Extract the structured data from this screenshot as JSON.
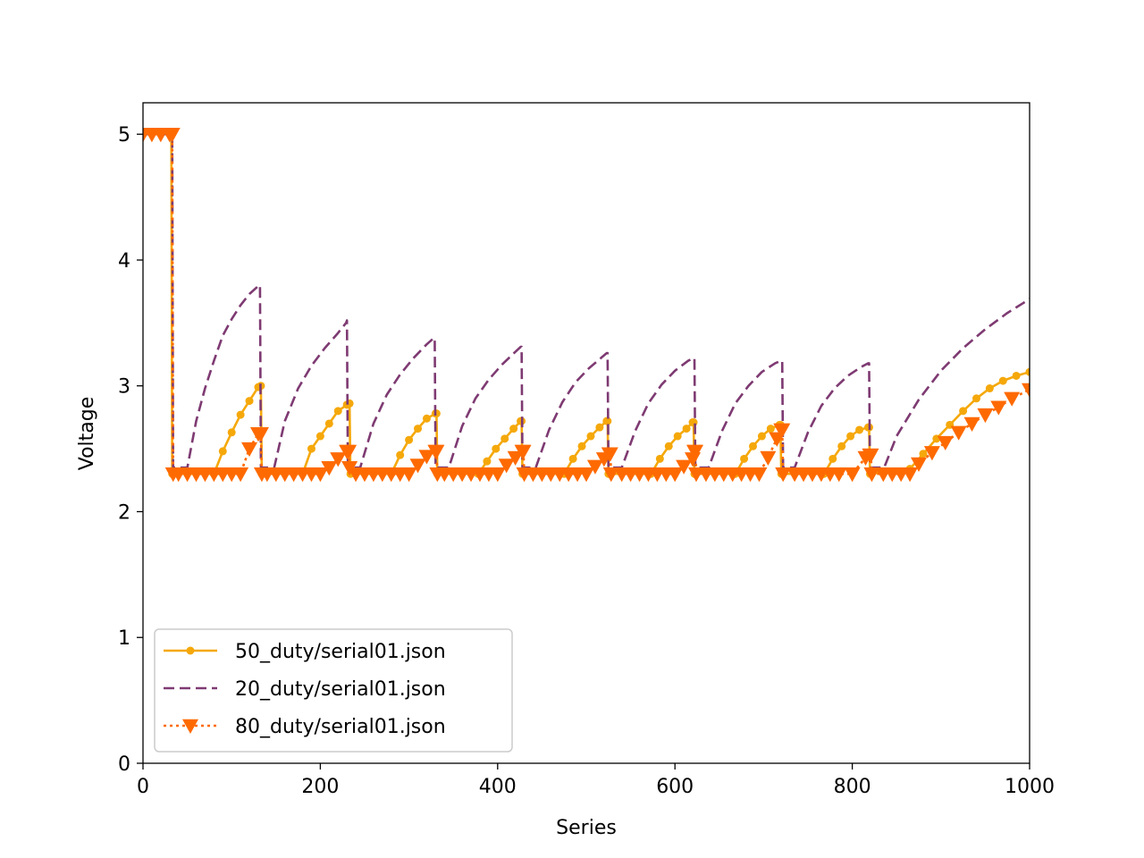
{
  "chart_data": {
    "type": "line",
    "title": "",
    "xlabel": "Series",
    "ylabel": "Voltage",
    "xlim": [
      0,
      1000
    ],
    "ylim": [
      0,
      5.25
    ],
    "xticks": [
      0,
      200,
      400,
      600,
      800,
      1000
    ],
    "yticks": [
      0,
      1,
      2,
      3,
      4,
      5
    ],
    "xtick_labels": [
      "0",
      "200",
      "400",
      "600",
      "800",
      "1000"
    ],
    "ytick_labels": [
      "0",
      "1",
      "2",
      "3",
      "4",
      "5"
    ],
    "grid": false,
    "legend_position": "lower-left",
    "series": [
      {
        "name": "50_duty/serial01.json",
        "color": "#f5a80a",
        "line_style": "solid",
        "marker": "dot",
        "x": [
          0,
          32,
          33,
          80,
          90,
          100,
          110,
          120,
          130,
          133,
          134,
          180,
          190,
          200,
          210,
          220,
          230,
          233,
          234,
          280,
          290,
          300,
          310,
          320,
          330,
          331,
          332,
          378,
          388,
          398,
          408,
          418,
          426,
          427,
          428,
          475,
          485,
          495,
          505,
          515,
          523,
          524,
          525,
          573,
          583,
          593,
          603,
          613,
          620,
          621,
          622,
          668,
          678,
          688,
          698,
          708,
          718,
          719,
          720,
          768,
          778,
          788,
          798,
          808,
          818,
          819,
          820,
          865,
          880,
          895,
          910,
          925,
          940,
          955,
          970,
          985,
          1000
        ],
        "y": [
          5.0,
          5.0,
          2.3,
          2.3,
          2.48,
          2.63,
          2.77,
          2.88,
          2.99,
          3.0,
          2.3,
          2.3,
          2.5,
          2.6,
          2.7,
          2.8,
          2.85,
          2.86,
          2.3,
          2.3,
          2.45,
          2.57,
          2.66,
          2.74,
          2.78,
          2.78,
          2.3,
          2.3,
          2.4,
          2.5,
          2.58,
          2.66,
          2.72,
          2.72,
          2.3,
          2.3,
          2.42,
          2.52,
          2.6,
          2.67,
          2.72,
          2.72,
          2.3,
          2.3,
          2.42,
          2.52,
          2.6,
          2.66,
          2.71,
          2.71,
          2.3,
          2.3,
          2.42,
          2.52,
          2.6,
          2.66,
          2.69,
          2.69,
          2.3,
          2.3,
          2.42,
          2.52,
          2.6,
          2.65,
          2.67,
          2.67,
          2.3,
          2.34,
          2.46,
          2.58,
          2.69,
          2.8,
          2.9,
          2.98,
          3.04,
          3.08,
          3.11
        ]
      },
      {
        "name": "20_duty/serial01.json",
        "color": "#7e3a72",
        "line_style": "dashed",
        "marker": "none",
        "x": [
          0,
          33,
          34,
          50,
          60,
          70,
          80,
          90,
          100,
          110,
          120,
          131,
          132,
          133,
          148,
          160,
          175,
          190,
          205,
          220,
          229,
          230,
          231,
          245,
          260,
          275,
          290,
          305,
          320,
          328,
          329,
          330,
          345,
          360,
          375,
          390,
          405,
          420,
          426,
          427,
          428,
          443,
          458,
          473,
          488,
          503,
          518,
          523,
          524,
          525,
          540,
          555,
          570,
          585,
          600,
          615,
          621,
          622,
          623,
          638,
          653,
          668,
          683,
          698,
          713,
          720,
          721,
          722,
          735,
          750,
          765,
          780,
          795,
          810,
          818,
          819,
          820,
          836,
          850,
          875,
          900,
          925,
          950,
          975,
          1000
        ],
        "y": [
          5.0,
          5.0,
          2.35,
          2.35,
          2.72,
          2.98,
          3.2,
          3.4,
          3.53,
          3.64,
          3.73,
          3.8,
          3.8,
          2.35,
          2.35,
          2.72,
          2.98,
          3.16,
          3.3,
          3.42,
          3.5,
          3.52,
          2.35,
          2.35,
          2.7,
          2.93,
          3.09,
          3.22,
          3.33,
          3.38,
          3.38,
          2.35,
          2.35,
          2.68,
          2.9,
          3.05,
          3.17,
          3.27,
          3.31,
          3.31,
          2.35,
          2.35,
          2.65,
          2.87,
          3.03,
          3.14,
          3.23,
          3.26,
          3.26,
          2.35,
          2.35,
          2.64,
          2.86,
          3.01,
          3.12,
          3.2,
          3.22,
          3.22,
          2.35,
          2.35,
          2.64,
          2.86,
          3.0,
          3.11,
          3.18,
          3.2,
          3.2,
          2.35,
          2.35,
          2.63,
          2.84,
          2.98,
          3.08,
          3.15,
          3.18,
          3.18,
          2.35,
          2.35,
          2.6,
          2.89,
          3.12,
          3.3,
          3.45,
          3.58,
          3.69
        ]
      },
      {
        "name": "80_duty/serial01.json",
        "color": "#ff6a00",
        "line_style": "dotted",
        "marker": "triangle-down",
        "x": [
          0,
          10,
          20,
          30,
          33,
          34,
          40,
          50,
          60,
          70,
          80,
          90,
          100,
          110,
          120,
          130,
          133,
          134,
          140,
          150,
          160,
          170,
          180,
          190,
          200,
          210,
          220,
          230,
          232,
          233,
          240,
          250,
          260,
          270,
          280,
          290,
          300,
          310,
          320,
          330,
          331,
          332,
          340,
          350,
          360,
          370,
          380,
          390,
          400,
          410,
          420,
          428,
          429,
          430,
          440,
          450,
          460,
          470,
          480,
          490,
          500,
          510,
          520,
          526,
          527,
          528,
          540,
          550,
          560,
          570,
          580,
          590,
          600,
          610,
          620,
          622,
          623,
          624,
          635,
          645,
          655,
          665,
          675,
          685,
          695,
          705,
          715,
          720,
          721,
          722,
          735,
          745,
          755,
          765,
          775,
          785,
          800,
          815,
          820,
          821,
          822,
          835,
          845,
          855,
          865,
          875,
          890,
          905,
          920,
          935,
          950,
          965,
          980,
          1000
        ],
        "y": [
          5.0,
          5.0,
          5.0,
          5.0,
          5.0,
          2.3,
          2.3,
          2.3,
          2.3,
          2.3,
          2.3,
          2.3,
          2.3,
          2.3,
          2.5,
          2.62,
          2.62,
          2.3,
          2.3,
          2.3,
          2.3,
          2.3,
          2.3,
          2.3,
          2.3,
          2.35,
          2.42,
          2.48,
          2.48,
          2.35,
          2.3,
          2.3,
          2.3,
          2.3,
          2.3,
          2.3,
          2.3,
          2.37,
          2.44,
          2.48,
          2.48,
          2.3,
          2.3,
          2.3,
          2.3,
          2.3,
          2.3,
          2.3,
          2.3,
          2.37,
          2.43,
          2.48,
          2.48,
          2.3,
          2.3,
          2.3,
          2.3,
          2.3,
          2.3,
          2.3,
          2.3,
          2.36,
          2.42,
          2.46,
          2.46,
          2.3,
          2.3,
          2.3,
          2.3,
          2.3,
          2.3,
          2.3,
          2.3,
          2.36,
          2.42,
          2.48,
          2.48,
          2.3,
          2.3,
          2.3,
          2.3,
          2.3,
          2.3,
          2.3,
          2.3,
          2.43,
          2.58,
          2.65,
          2.65,
          2.3,
          2.3,
          2.3,
          2.3,
          2.3,
          2.3,
          2.3,
          2.3,
          2.43,
          2.45,
          2.45,
          2.3,
          2.3,
          2.3,
          2.3,
          2.3,
          2.38,
          2.47,
          2.55,
          2.63,
          2.7,
          2.77,
          2.83,
          2.9,
          2.97
        ]
      }
    ]
  }
}
